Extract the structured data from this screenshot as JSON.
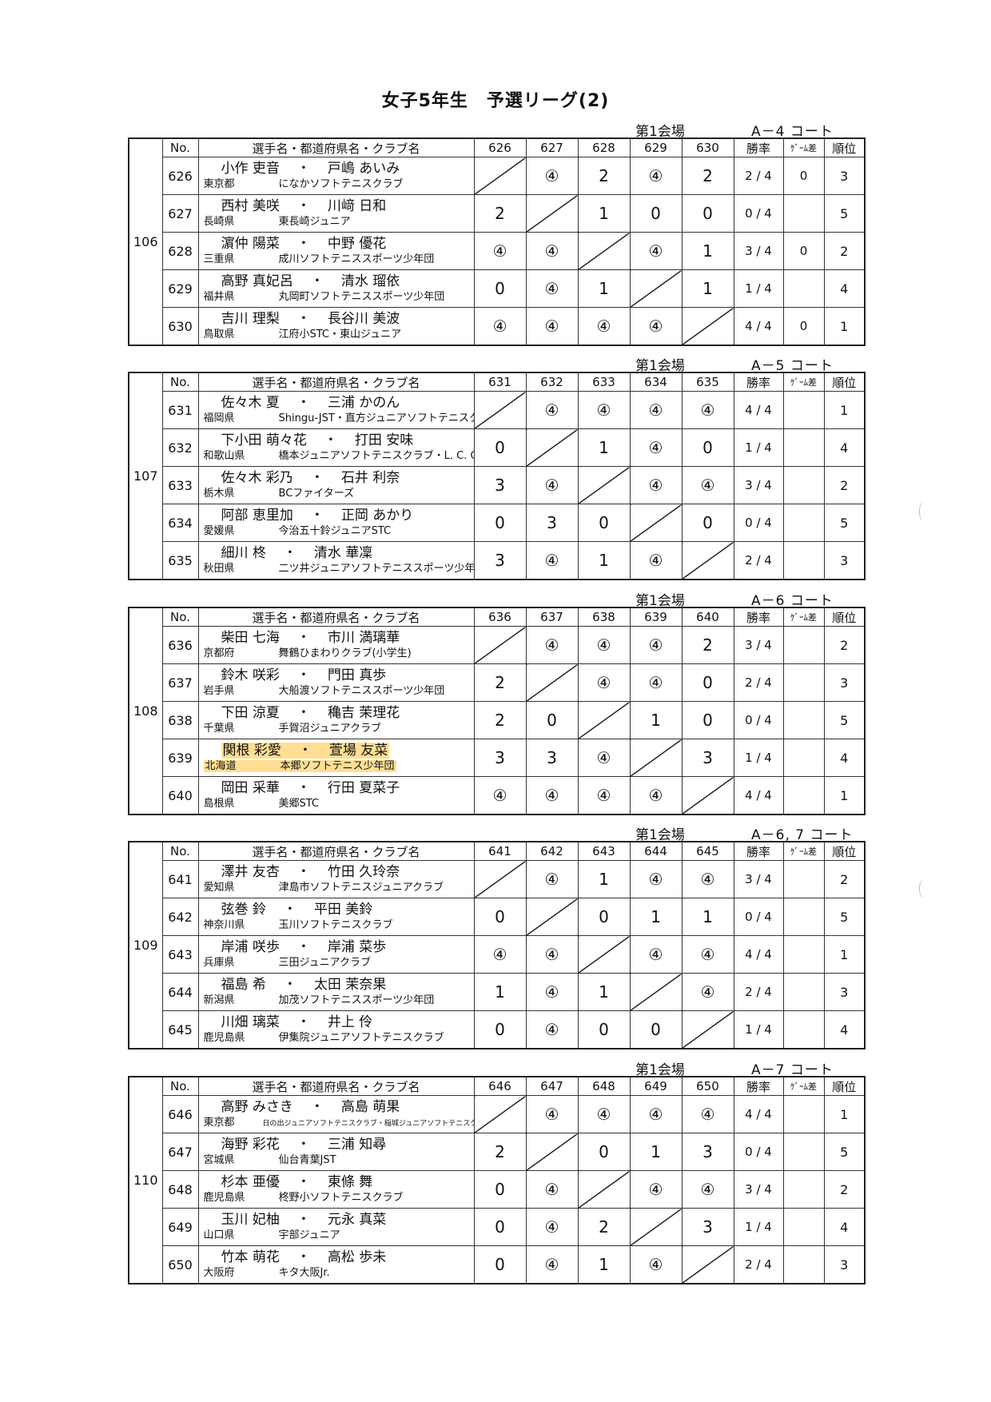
{
  "title": "女子5年生　予選リーグ(2)",
  "headers": {
    "no": "No.",
    "name": "選手名・都道府県名・クラブ名",
    "rate": "勝率",
    "game_diff": "ｹﾞｰﾑ差",
    "rank": "順位"
  },
  "highlight_color": "#ffc43c",
  "groups": [
    {
      "group": "106",
      "venue": "第1会場",
      "court": "A－4 コート",
      "cols": [
        "626",
        "627",
        "628",
        "629",
        "630"
      ],
      "rows": [
        {
          "no": "626",
          "p1": "小作 吏音",
          "p2": "戸嶋 あいみ",
          "pref": "東京都",
          "club": "になかソフトテニスクラブ",
          "scores": [
            "",
            "④",
            "2",
            "④",
            "2"
          ],
          "rate": "2 / 4",
          "gd": "0",
          "rank": "3"
        },
        {
          "no": "627",
          "p1": "西村 美咲",
          "p2": "川﨑 日和",
          "pref": "長崎県",
          "club": "東長崎ジュニア",
          "scores": [
            "2",
            "",
            "1",
            "0",
            "0"
          ],
          "rate": "0 / 4",
          "gd": "",
          "rank": "5"
        },
        {
          "no": "628",
          "p1": "濵仲 陽菜",
          "p2": "中野 優花",
          "pref": "三重県",
          "club": "成川ソフトテニススポーツ少年団",
          "scores": [
            "④",
            "④",
            "",
            "④",
            "1"
          ],
          "rate": "3 / 4",
          "gd": "0",
          "rank": "2"
        },
        {
          "no": "629",
          "p1": "高野 真妃呂",
          "p2": "清水 瑠依",
          "pref": "福井県",
          "club": "丸岡町ソフトテニススポーツ少年団",
          "scores": [
            "0",
            "④",
            "1",
            "",
            "1"
          ],
          "rate": "1 / 4",
          "gd": "",
          "rank": "4"
        },
        {
          "no": "630",
          "p1": "吉川 理梨",
          "p2": "長谷川 美波",
          "pref": "鳥取県",
          "club": "江府小STC・東山ジュニア",
          "scores": [
            "④",
            "④",
            "④",
            "④",
            ""
          ],
          "rate": "4 / 4",
          "gd": "0",
          "rank": "1"
        }
      ]
    },
    {
      "group": "107",
      "venue": "第1会場",
      "court": "A－5 コート",
      "cols": [
        "631",
        "632",
        "633",
        "634",
        "635"
      ],
      "rows": [
        {
          "no": "631",
          "p1": "佐々木 夏",
          "p2": "三浦 かのん",
          "pref": "福岡県",
          "club": "Shingu-JST・直方ジュニアソフトテニスクラブ",
          "scores": [
            "",
            "④",
            "④",
            "④",
            "④"
          ],
          "rate": "4 / 4",
          "gd": "",
          "rank": "1"
        },
        {
          "no": "632",
          "p1": "下小田 萌々花",
          "p2": "打田 安味",
          "pref": "和歌山県",
          "club": "橋本ジュニアソフトテニスクラブ・L. C. C.",
          "scores": [
            "0",
            "",
            "1",
            "④",
            "0"
          ],
          "rate": "1 / 4",
          "gd": "",
          "rank": "4"
        },
        {
          "no": "633",
          "p1": "佐々木 彩乃",
          "p2": "石井 利奈",
          "pref": "栃木県",
          "club": "BCファイターズ",
          "scores": [
            "3",
            "④",
            "",
            "④",
            "④"
          ],
          "rate": "3 / 4",
          "gd": "",
          "rank": "2"
        },
        {
          "no": "634",
          "p1": "阿部 恵里加",
          "p2": "正岡 あかり",
          "pref": "愛媛県",
          "club": "今治五十鈴ジュニアSTC",
          "scores": [
            "0",
            "3",
            "0",
            "",
            "0"
          ],
          "rate": "0 / 4",
          "gd": "",
          "rank": "5"
        },
        {
          "no": "635",
          "p1": "細川 柊",
          "p2": "清水 華凜",
          "pref": "秋田県",
          "club": "二ツ井ジュニアソフトテニススポーツ少年団",
          "scores": [
            "3",
            "④",
            "1",
            "④",
            ""
          ],
          "rate": "2 / 4",
          "gd": "",
          "rank": "3"
        }
      ]
    },
    {
      "group": "108",
      "venue": "第1会場",
      "court": "A－6 コート",
      "cols": [
        "636",
        "637",
        "638",
        "639",
        "640"
      ],
      "rows": [
        {
          "no": "636",
          "p1": "柴田 七海",
          "p2": "市川 満璃華",
          "pref": "京都府",
          "club": "舞鶴ひまわりクラブ(小学生)",
          "scores": [
            "",
            "④",
            "④",
            "④",
            "2"
          ],
          "rate": "3 / 4",
          "gd": "",
          "rank": "2"
        },
        {
          "no": "637",
          "p1": "鈴木 咲彩",
          "p2": "門田 真歩",
          "pref": "岩手県",
          "club": "大船渡ソフトテニススポーツ少年団",
          "scores": [
            "2",
            "",
            "④",
            "④",
            "0"
          ],
          "rate": "2 / 4",
          "gd": "",
          "rank": "3"
        },
        {
          "no": "638",
          "p1": "下田 涼夏",
          "p2": "穐吉 茉理花",
          "pref": "千葉県",
          "club": "手賀沼ジュニアクラブ",
          "scores": [
            "2",
            "0",
            "",
            "1",
            "0"
          ],
          "rate": "0 / 4",
          "gd": "",
          "rank": "5"
        },
        {
          "no": "639",
          "p1": "関根 彩愛",
          "p2": "萱場 友菜",
          "pref": "北海道",
          "club": "本郷ソフトテニス少年団",
          "scores": [
            "3",
            "3",
            "④",
            "",
            "3"
          ],
          "rate": "1 / 4",
          "gd": "",
          "rank": "4",
          "highlighted": true
        },
        {
          "no": "640",
          "p1": "岡田 采華",
          "p2": "行田 夏菜子",
          "pref": "島根県",
          "club": "美郷STC",
          "scores": [
            "④",
            "④",
            "④",
            "④",
            ""
          ],
          "rate": "4 / 4",
          "gd": "",
          "rank": "1"
        }
      ]
    },
    {
      "group": "109",
      "venue": "第1会場",
      "court": "A－6, 7 コート",
      "cols": [
        "641",
        "642",
        "643",
        "644",
        "645"
      ],
      "rows": [
        {
          "no": "641",
          "p1": "澤井 友杏",
          "p2": "竹田 久玲奈",
          "pref": "愛知県",
          "club": "津島市ソフトテニスジュニアクラブ",
          "scores": [
            "",
            "④",
            "1",
            "④",
            "④"
          ],
          "rate": "3 / 4",
          "gd": "",
          "rank": "2"
        },
        {
          "no": "642",
          "p1": "弦巻 鈴",
          "p2": "平田 美鈴",
          "pref": "神奈川県",
          "club": "玉川ソフトテニスクラブ",
          "scores": [
            "0",
            "",
            "0",
            "1",
            "1"
          ],
          "rate": "0 / 4",
          "gd": "",
          "rank": "5"
        },
        {
          "no": "643",
          "p1": "岸浦 咲歩",
          "p2": "岸浦 菜歩",
          "pref": "兵庫県",
          "club": "三田ジュニアクラブ",
          "scores": [
            "④",
            "④",
            "",
            "④",
            "④"
          ],
          "rate": "4 / 4",
          "gd": "",
          "rank": "1"
        },
        {
          "no": "644",
          "p1": "福島 希",
          "p2": "太田 茉奈果",
          "pref": "新潟県",
          "club": "加茂ソフトテニススポーツ少年団",
          "scores": [
            "1",
            "④",
            "1",
            "",
            "④"
          ],
          "rate": "2 / 4",
          "gd": "",
          "rank": "3"
        },
        {
          "no": "645",
          "p1": "川畑 璃菜",
          "p2": "井上 伶",
          "pref": "鹿児島県",
          "club": "伊集院ジュニアソフトテニスクラブ",
          "scores": [
            "0",
            "④",
            "0",
            "0",
            ""
          ],
          "rate": "1 / 4",
          "gd": "",
          "rank": "4"
        }
      ]
    },
    {
      "group": "110",
      "venue": "第1会場",
      "court": "A－7 コート",
      "cols": [
        "646",
        "647",
        "648",
        "649",
        "650"
      ],
      "rows": [
        {
          "no": "646",
          "p1": "高野 みさき",
          "p2": "高島 萌果",
          "pref": "東京都",
          "club": "日の出ジュニアソフトテニスクラブ・稲城ジュニアソフトテニスクラブ",
          "scores": [
            "",
            "④",
            "④",
            "④",
            "④"
          ],
          "rate": "4 / 4",
          "gd": "",
          "rank": "1",
          "club_small": true
        },
        {
          "no": "647",
          "p1": "海野 彩花",
          "p2": "三浦 知尋",
          "pref": "宮城県",
          "club": "仙台青葉JST",
          "scores": [
            "2",
            "",
            "0",
            "1",
            "3"
          ],
          "rate": "0 / 4",
          "gd": "",
          "rank": "5"
        },
        {
          "no": "648",
          "p1": "杉本 亜優",
          "p2": "東條 舞",
          "pref": "鹿児島県",
          "club": "柊野小ソフトテニスクラブ",
          "scores": [
            "0",
            "④",
            "",
            "④",
            "④"
          ],
          "rate": "3 / 4",
          "gd": "",
          "rank": "2"
        },
        {
          "no": "649",
          "p1": "玉川 妃柚",
          "p2": "元永 真菜",
          "pref": "山口県",
          "club": "宇部ジュニア",
          "scores": [
            "0",
            "④",
            "2",
            "",
            "3"
          ],
          "rate": "1 / 4",
          "gd": "",
          "rank": "4"
        },
        {
          "no": "650",
          "p1": "竹本 萌花",
          "p2": "高松 歩未",
          "pref": "大阪府",
          "club": "キタ大阪Jr.",
          "scores": [
            "0",
            "④",
            "1",
            "④",
            ""
          ],
          "rate": "2 / 4",
          "gd": "",
          "rank": "3"
        }
      ]
    }
  ]
}
